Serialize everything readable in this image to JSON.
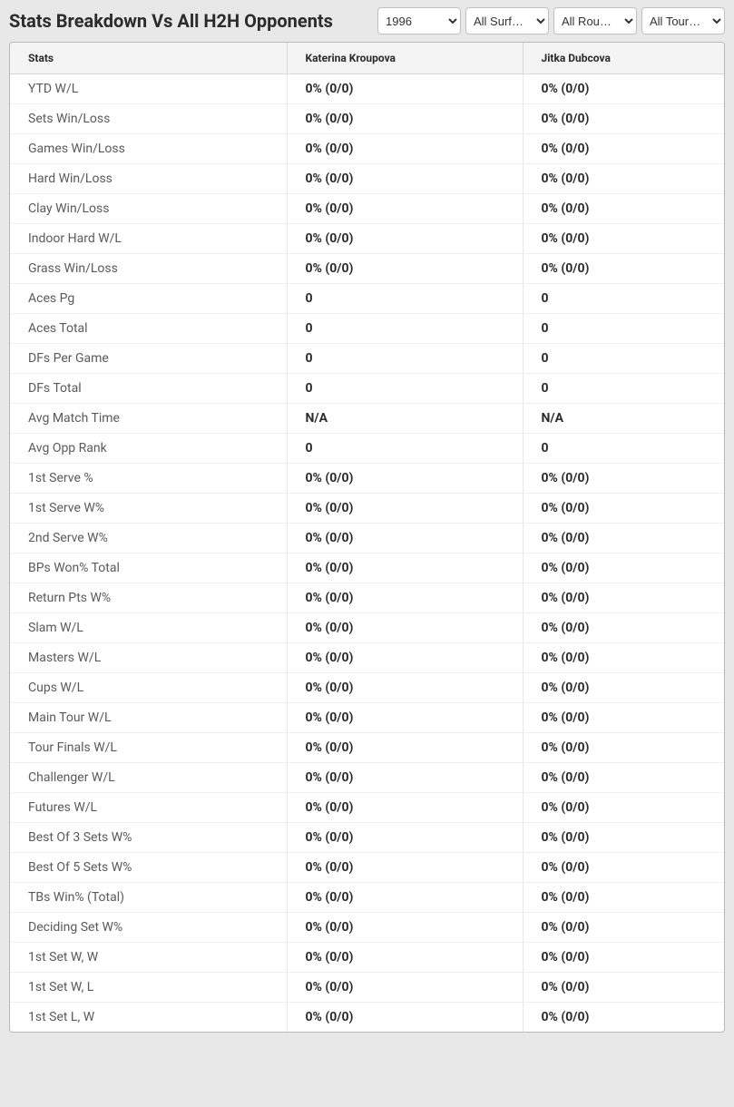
{
  "title": "Stats Breakdown Vs All H2H Opponents",
  "filters": {
    "year": "1996",
    "surface": "All Surf…",
    "round": "All Rou…",
    "tournament": "All Tour…"
  },
  "columns": {
    "stats": "Stats",
    "player1": "Katerina Kroupova",
    "player2": "Jitka Dubcova"
  },
  "rows": [
    {
      "label": "YTD W/L",
      "p1": "0% (0/0)",
      "p2": "0% (0/0)"
    },
    {
      "label": "Sets Win/Loss",
      "p1": "0% (0/0)",
      "p2": "0% (0/0)"
    },
    {
      "label": "Games Win/Loss",
      "p1": "0% (0/0)",
      "p2": "0% (0/0)"
    },
    {
      "label": "Hard Win/Loss",
      "p1": "0% (0/0)",
      "p2": "0% (0/0)"
    },
    {
      "label": "Clay Win/Loss",
      "p1": "0% (0/0)",
      "p2": "0% (0/0)"
    },
    {
      "label": "Indoor Hard W/L",
      "p1": "0% (0/0)",
      "p2": "0% (0/0)"
    },
    {
      "label": "Grass Win/Loss",
      "p1": "0% (0/0)",
      "p2": "0% (0/0)"
    },
    {
      "label": "Aces Pg",
      "p1": "0",
      "p2": "0"
    },
    {
      "label": "Aces Total",
      "p1": "0",
      "p2": "0"
    },
    {
      "label": "DFs Per Game",
      "p1": "0",
      "p2": "0"
    },
    {
      "label": "DFs Total",
      "p1": "0",
      "p2": "0"
    },
    {
      "label": "Avg Match Time",
      "p1": "N/A",
      "p2": "N/A"
    },
    {
      "label": "Avg Opp Rank",
      "p1": "0",
      "p2": "0"
    },
    {
      "label": "1st Serve %",
      "p1": "0% (0/0)",
      "p2": "0% (0/0)"
    },
    {
      "label": "1st Serve W%",
      "p1": "0% (0/0)",
      "p2": "0% (0/0)"
    },
    {
      "label": "2nd Serve W%",
      "p1": "0% (0/0)",
      "p2": "0% (0/0)"
    },
    {
      "label": "BPs Won% Total",
      "p1": "0% (0/0)",
      "p2": "0% (0/0)"
    },
    {
      "label": "Return Pts W%",
      "p1": "0% (0/0)",
      "p2": "0% (0/0)"
    },
    {
      "label": "Slam W/L",
      "p1": "0% (0/0)",
      "p2": "0% (0/0)"
    },
    {
      "label": "Masters W/L",
      "p1": "0% (0/0)",
      "p2": "0% (0/0)"
    },
    {
      "label": "Cups W/L",
      "p1": "0% (0/0)",
      "p2": "0% (0/0)"
    },
    {
      "label": "Main Tour W/L",
      "p1": "0% (0/0)",
      "p2": "0% (0/0)"
    },
    {
      "label": "Tour Finals W/L",
      "p1": "0% (0/0)",
      "p2": "0% (0/0)"
    },
    {
      "label": "Challenger W/L",
      "p1": "0% (0/0)",
      "p2": "0% (0/0)"
    },
    {
      "label": "Futures W/L",
      "p1": "0% (0/0)",
      "p2": "0% (0/0)"
    },
    {
      "label": "Best Of 3 Sets W%",
      "p1": "0% (0/0)",
      "p2": "0% (0/0)"
    },
    {
      "label": "Best Of 5 Sets W%",
      "p1": "0% (0/0)",
      "p2": "0% (0/0)"
    },
    {
      "label": "TBs Win% (Total)",
      "p1": "0% (0/0)",
      "p2": "0% (0/0)"
    },
    {
      "label": "Deciding Set W%",
      "p1": "0% (0/0)",
      "p2": "0% (0/0)"
    },
    {
      "label": "1st Set W, W",
      "p1": "0% (0/0)",
      "p2": "0% (0/0)"
    },
    {
      "label": "1st Set W, L",
      "p1": "0% (0/0)",
      "p2": "0% (0/0)"
    },
    {
      "label": "1st Set L, W",
      "p1": "0% (0/0)",
      "p2": "0% (0/0)"
    }
  ]
}
